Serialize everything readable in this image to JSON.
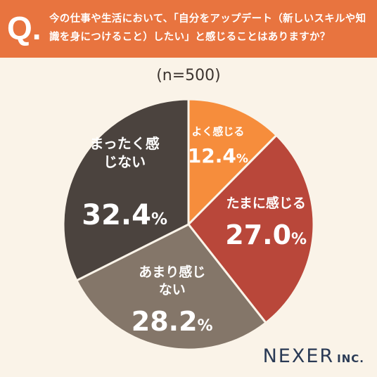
{
  "header": {
    "q_mark": "Q.",
    "question": "今の仕事や生活において、「自分をアップデート（新しいスキルや知識を身につけること）したい」と感じることはありますか？"
  },
  "sample_label": "(n=500)",
  "chart_data": {
    "type": "pie",
    "categories": [
      "よく感じる",
      "たまに感じる",
      "あまり感じない",
      "まったく感じない"
    ],
    "values": [
      12.4,
      27.0,
      28.2,
      32.4
    ],
    "value_labels": [
      "12.4",
      "27.0",
      "28.2",
      "32.4"
    ],
    "unit": "%",
    "colors": [
      "#f68d3c",
      "#b9473a",
      "#847669",
      "#4b433e"
    ],
    "start": "top, clockwise"
  },
  "logo": {
    "main": "NEXER",
    "suffix": "INC."
  }
}
